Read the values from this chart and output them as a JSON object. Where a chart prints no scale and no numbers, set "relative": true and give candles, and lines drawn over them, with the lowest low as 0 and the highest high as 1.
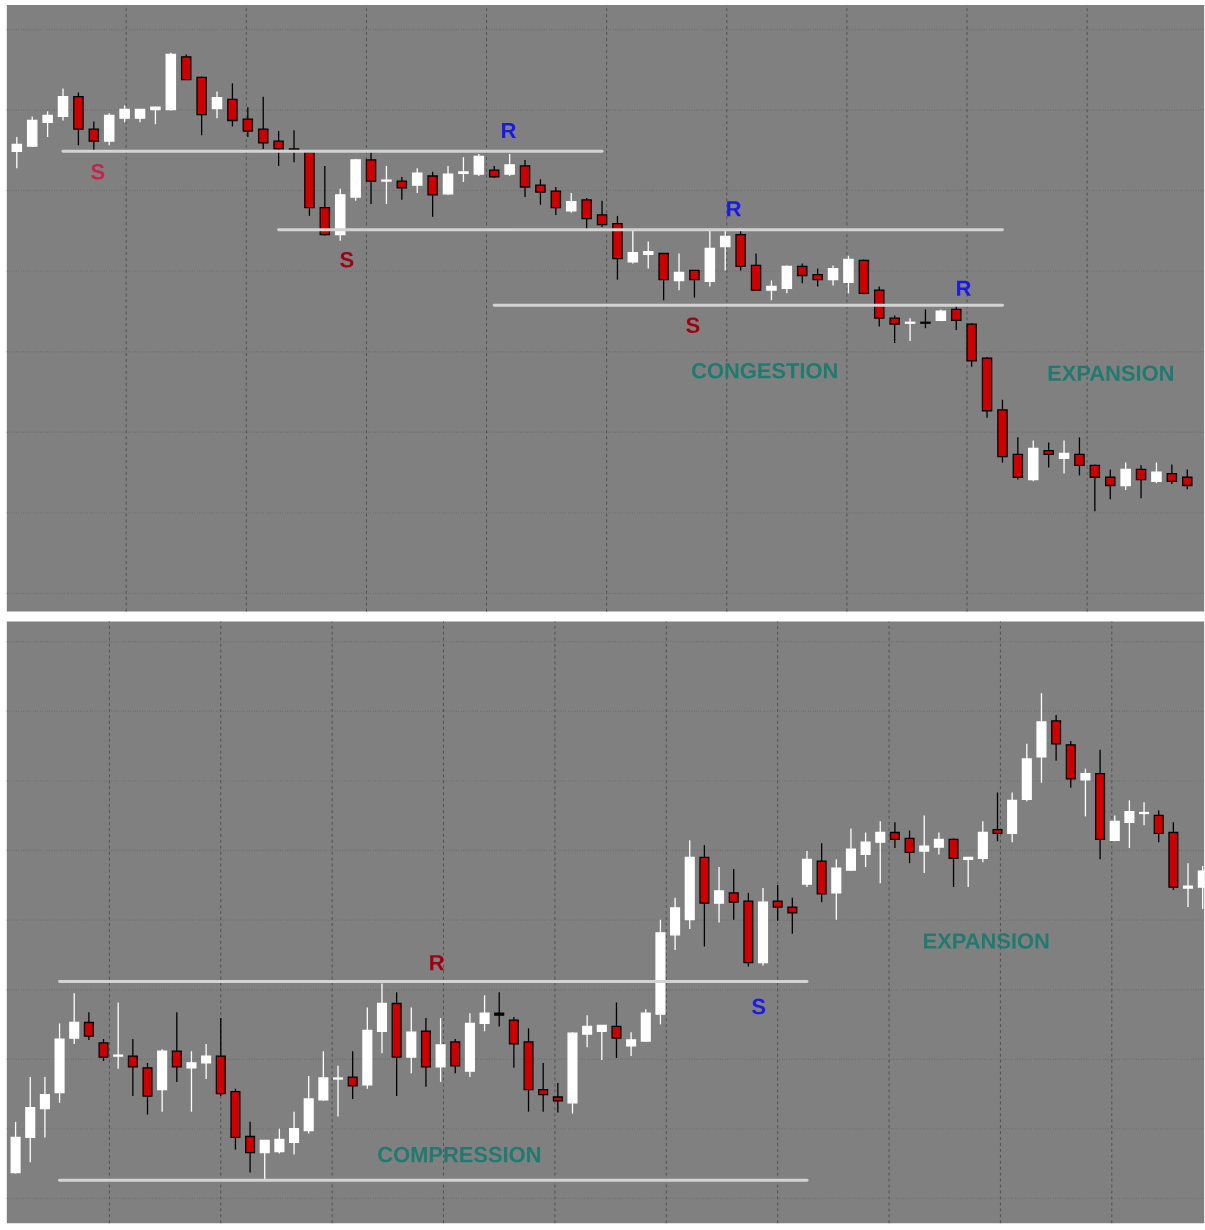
{
  "chart_data": [
    {
      "type": "candlestick",
      "relative": true,
      "grid": true,
      "categories": [
        null,
        null,
        null,
        null,
        null,
        null,
        null,
        null,
        null,
        null,
        null,
        null,
        null,
        null,
        null,
        null,
        null,
        null,
        null,
        null,
        null,
        null,
        null,
        null,
        null,
        null,
        null,
        null,
        null,
        null,
        null,
        null,
        null,
        null,
        null,
        null,
        null,
        null,
        null,
        null,
        null,
        null,
        null,
        null,
        null,
        null,
        null,
        null,
        null,
        null,
        null,
        null,
        null,
        null,
        null,
        null,
        null,
        null,
        null,
        null,
        null,
        null,
        null,
        null,
        null,
        null,
        null,
        null,
        null,
        null,
        null,
        null,
        null,
        null,
        null,
        null,
        null
      ],
      "ohlc": [
        [
          0.785,
          0.816,
          0.748,
          0.8
        ],
        [
          0.796,
          0.861,
          0.794,
          0.852
        ],
        [
          0.848,
          0.872,
          0.816,
          0.863
        ],
        [
          0.861,
          0.922,
          0.852,
          0.904
        ],
        [
          0.904,
          0.913,
          0.798,
          0.833
        ],
        [
          0.833,
          0.85,
          0.787,
          0.807
        ],
        [
          0.807,
          0.868,
          0.798,
          0.863
        ],
        [
          0.857,
          0.885,
          0.848,
          0.876
        ],
        [
          0.857,
          0.876,
          0.848,
          0.876
        ],
        [
          0.876,
          0.881,
          0.844,
          0.881
        ],
        [
          0.876,
          1.0,
          0.874,
          0.996
        ],
        [
          0.991,
          0.996,
          0.941,
          0.941
        ],
        [
          0.946,
          0.948,
          0.82,
          0.865
        ],
        [
          0.878,
          0.915,
          0.857,
          0.902
        ],
        [
          0.898,
          0.933,
          0.839,
          0.852
        ],
        [
          0.855,
          0.881,
          0.816,
          0.829
        ],
        [
          0.833,
          0.904,
          0.79,
          0.803
        ],
        [
          0.807,
          0.829,
          0.753,
          0.79
        ],
        [
          0.79,
          0.831,
          0.761,
          0.787
        ],
        [
          0.783,
          0.787,
          0.644,
          0.662
        ],
        [
          0.662,
          0.753,
          0.601,
          0.603
        ],
        [
          0.603,
          0.703,
          0.59,
          0.69
        ],
        [
          0.685,
          0.768,
          0.677,
          0.766
        ],
        [
          0.766,
          0.783,
          0.67,
          0.72
        ],
        [
          0.72,
          0.753,
          0.67,
          0.722
        ],
        [
          0.72,
          0.729,
          0.679,
          0.705
        ],
        [
          0.711,
          0.748,
          0.694,
          0.737
        ],
        [
          0.731,
          0.74,
          0.642,
          0.69
        ],
        [
          0.692,
          0.753,
          0.69,
          0.735
        ],
        [
          0.737,
          0.772,
          0.718,
          0.74
        ],
        [
          0.735,
          0.779,
          0.731,
          0.774
        ],
        [
          0.744,
          0.753,
          0.727,
          0.729
        ],
        [
          0.735,
          0.779,
          0.731,
          0.755
        ],
        [
          0.753,
          0.766,
          0.685,
          0.707
        ],
        [
          0.711,
          0.724,
          0.668,
          0.696
        ],
        [
          0.698,
          0.707,
          0.646,
          0.662
        ],
        [
          0.655,
          0.694,
          0.651,
          0.675
        ],
        [
          0.679,
          0.683,
          0.612,
          0.638
        ],
        [
          0.646,
          0.677,
          0.62,
          0.625
        ],
        [
          0.627,
          0.644,
          0.505,
          0.551
        ],
        [
          0.544,
          0.612,
          0.54,
          0.564
        ],
        [
          0.56,
          0.588,
          0.529,
          0.566
        ],
        [
          0.562,
          0.562,
          0.46,
          0.505
        ],
        [
          0.503,
          0.562,
          0.482,
          0.521
        ],
        [
          0.525,
          0.525,
          0.466,
          0.505
        ],
        [
          0.501,
          0.612,
          0.49,
          0.573
        ],
        [
          0.577,
          0.612,
          0.525,
          0.599
        ],
        [
          0.603,
          0.612,
          0.525,
          0.534
        ],
        [
          0.536,
          0.562,
          0.482,
          0.482
        ],
        [
          0.482,
          0.503,
          0.46,
          0.49
        ],
        [
          0.486,
          0.536,
          0.475,
          0.534
        ],
        [
          0.534,
          0.54,
          0.497,
          0.514
        ],
        [
          0.516,
          0.529,
          0.49,
          0.505
        ],
        [
          0.505,
          0.536,
          0.492,
          0.529
        ],
        [
          0.499,
          0.557,
          0.475,
          0.549
        ],
        [
          0.547,
          0.549,
          0.473,
          0.475
        ],
        [
          0.482,
          0.49,
          0.403,
          0.421
        ],
        [
          0.421,
          0.427,
          0.367,
          0.408
        ],
        [
          0.41,
          0.421,
          0.371,
          0.412
        ],
        [
          0.412,
          0.44,
          0.399,
          0.41
        ],
        [
          0.416,
          0.44,
          0.414,
          0.436
        ],
        [
          0.44,
          0.447,
          0.395,
          0.416
        ],
        [
          0.408,
          0.41,
          0.315,
          0.328
        ],
        [
          0.334,
          0.336,
          0.204,
          0.219
        ],
        [
          0.221,
          0.243,
          0.106,
          0.119
        ],
        [
          0.124,
          0.161,
          0.069,
          0.074
        ],
        [
          0.069,
          0.154,
          0.065,
          0.137
        ],
        [
          0.132,
          0.15,
          0.095,
          0.124
        ],
        [
          0.115,
          0.154,
          0.082,
          0.126
        ],
        [
          0.124,
          0.161,
          0.078,
          0.1
        ],
        [
          0.1,
          0.102,
          0.0,
          0.074
        ],
        [
          0.074,
          0.091,
          0.026,
          0.056
        ],
        [
          0.056,
          0.106,
          0.046,
          0.091
        ],
        [
          0.091,
          0.1,
          0.028,
          0.069
        ],
        [
          0.065,
          0.106,
          0.061,
          0.085
        ],
        [
          0.082,
          0.102,
          0.059,
          0.065
        ],
        [
          0.074,
          0.091,
          0.048,
          0.056
        ]
      ],
      "colors": [
        "#ffffff",
        "#ffffff",
        "#ffffff",
        "#ffffff",
        "#cc0000",
        "#cc0000",
        "#ffffff",
        "#ffffff",
        "#ffffff",
        "#ffffff",
        "#ffffff",
        "#cc0000",
        "#cc0000",
        "#ffffff",
        "#cc0000",
        "#cc0000",
        "#cc0000",
        "#cc0000",
        "#cc0000",
        "#cc0000",
        "#cc0000",
        "#ffffff",
        "#ffffff",
        "#cc0000",
        "#ffffff",
        "#cc0000",
        "#ffffff",
        "#cc0000",
        "#ffffff",
        "#ffffff",
        "#ffffff",
        "#cc0000",
        "#ffffff",
        "#cc0000",
        "#cc0000",
        "#cc0000",
        "#ffffff",
        "#cc0000",
        "#cc0000",
        "#cc0000",
        "#ffffff",
        "#ffffff",
        "#cc0000",
        "#ffffff",
        "#cc0000",
        "#ffffff",
        "#ffffff",
        "#cc0000",
        "#cc0000",
        "#ffffff",
        "#ffffff",
        "#cc0000",
        "#cc0000",
        "#ffffff",
        "#ffffff",
        "#cc0000",
        "#cc0000",
        "#cc0000",
        "#ffffff",
        "#000000",
        "#ffffff",
        "#cc0000",
        "#cc0000",
        "#cc0000",
        "#cc0000",
        "#cc0000",
        "#ffffff",
        "#cc0000",
        "#ffffff",
        "#cc0000",
        "#cc0000",
        "#cc0000",
        "#ffffff",
        "#cc0000",
        "#ffffff",
        "#cc0000",
        "#cc0000"
      ],
      "series": [
        {
          "type": "line",
          "color": "#d3d3d3",
          "values": [
            null,
            null,
            null,
            0.785,
            0.785,
            0.785,
            0.785,
            0.785,
            0.785,
            0.785,
            0.785,
            0.785,
            0.785,
            0.785,
            0.785,
            0.785,
            0.785,
            0.785,
            0.785,
            0.785,
            0.785,
            0.785,
            0.785,
            0.785,
            0.785,
            0.785,
            0.785,
            0.785,
            0.785,
            0.785,
            0.785,
            0.785,
            0.785,
            0.785,
            0.785,
            0.785,
            0.785,
            0.785,
            0.785,
            null,
            null,
            null,
            null,
            null,
            null,
            null,
            null,
            null,
            null,
            null,
            null,
            null,
            null,
            null,
            null,
            null,
            null,
            null,
            null,
            null,
            null,
            null,
            null,
            null,
            null,
            null,
            null,
            null,
            null,
            null,
            null,
            null,
            null,
            null,
            null,
            null,
            null
          ]
        },
        {
          "type": "line",
          "color": "#d3d3d3",
          "values": [
            null,
            null,
            null,
            null,
            null,
            null,
            null,
            null,
            null,
            null,
            null,
            null,
            null,
            null,
            null,
            null,
            null,
            0.614,
            0.614,
            0.614,
            0.614,
            0.614,
            0.614,
            0.614,
            0.614,
            0.614,
            0.614,
            0.614,
            0.614,
            0.614,
            0.614,
            0.614,
            0.614,
            0.614,
            0.614,
            0.614,
            0.614,
            0.614,
            0.614,
            0.614,
            0.614,
            0.614,
            0.614,
            0.614,
            0.614,
            0.614,
            0.614,
            0.614,
            0.614,
            0.614,
            0.614,
            0.614,
            0.614,
            0.614,
            0.614,
            0.614,
            0.614,
            0.614,
            0.614,
            0.614,
            0.614,
            0.614,
            0.614,
            0.614,
            0.614,
            null,
            null,
            null,
            null,
            null,
            null,
            null,
            null,
            null,
            null,
            null,
            null
          ]
        },
        {
          "type": "line",
          "color": "#d3d3d3",
          "values": [
            null,
            null,
            null,
            null,
            null,
            null,
            null,
            null,
            null,
            null,
            null,
            null,
            null,
            null,
            null,
            null,
            null,
            null,
            null,
            null,
            null,
            null,
            null,
            null,
            null,
            null,
            null,
            null,
            null,
            null,
            null,
            0.449,
            0.449,
            0.449,
            0.449,
            0.449,
            0.449,
            0.449,
            0.449,
            0.449,
            0.449,
            0.449,
            0.449,
            0.449,
            0.449,
            0.449,
            0.449,
            0.449,
            0.449,
            0.449,
            0.449,
            0.449,
            0.449,
            0.449,
            0.449,
            0.449,
            0.449,
            0.449,
            0.449,
            0.449,
            0.449,
            0.449,
            0.449,
            0.449,
            0.449,
            null,
            null,
            null,
            null,
            null,
            null,
            null,
            null,
            null,
            null,
            null,
            null
          ]
        }
      ],
      "annotations": [
        "S",
        "S",
        "S",
        "R",
        "R",
        "R",
        "CONGESTION",
        "EXPANSION"
      ]
    },
    {
      "type": "candlestick",
      "relative": true,
      "grid": true,
      "categories": [
        null,
        null,
        null,
        null,
        null,
        null,
        null,
        null,
        null,
        null,
        null,
        null,
        null,
        null,
        null,
        null,
        null,
        null,
        null,
        null,
        null,
        null,
        null,
        null,
        null,
        null,
        null,
        null,
        null,
        null,
        null,
        null,
        null,
        null,
        null,
        null,
        null,
        null,
        null,
        null,
        null,
        null,
        null,
        null,
        null,
        null,
        null,
        null,
        null,
        null,
        null,
        null,
        null,
        null,
        null,
        null,
        null,
        null,
        null,
        null,
        null,
        null,
        null,
        null,
        null,
        null,
        null,
        null,
        null,
        null,
        null,
        null,
        null,
        null,
        null,
        null,
        null,
        null,
        null,
        null,
        null,
        null
      ],
      "ohlc": [
        [
          0.016,
          0.12,
          0.014,
          0.088
        ],
        [
          0.088,
          0.212,
          0.037,
          0.149
        ],
        [
          0.147,
          0.212,
          0.088,
          0.176
        ],
        [
          0.18,
          0.322,
          0.159,
          0.29
        ],
        [
          0.292,
          0.384,
          0.28,
          0.324
        ],
        [
          0.324,
          0.345,
          0.288,
          0.296
        ],
        [
          0.282,
          0.29,
          0.245,
          0.253
        ],
        [
          0.255,
          0.365,
          0.229,
          0.257
        ],
        [
          0.255,
          0.29,
          0.173,
          0.233
        ],
        [
          0.231,
          0.241,
          0.135,
          0.173
        ],
        [
          0.186,
          0.269,
          0.141,
          0.265
        ],
        [
          0.265,
          0.345,
          0.202,
          0.233
        ],
        [
          0.231,
          0.265,
          0.141,
          0.241
        ],
        [
          0.241,
          0.28,
          0.208,
          0.255
        ],
        [
          0.255,
          0.333,
          0.173,
          0.178
        ],
        [
          0.182,
          0.188,
          0.063,
          0.088
        ],
        [
          0.09,
          0.12,
          0.016,
          0.057
        ],
        [
          0.057,
          0.082,
          0.0,
          0.082
        ],
        [
          0.059,
          0.106,
          0.055,
          0.084
        ],
        [
          0.078,
          0.141,
          0.053,
          0.106
        ],
        [
          0.102,
          0.214,
          0.096,
          0.167
        ],
        [
          0.165,
          0.265,
          0.163,
          0.21
        ],
        [
          0.208,
          0.235,
          0.131,
          0.21
        ],
        [
          0.212,
          0.265,
          0.167,
          0.194
        ],
        [
          0.196,
          0.355,
          0.188,
          0.308
        ],
        [
          0.306,
          0.404,
          0.261,
          0.363
        ],
        [
          0.363,
          0.386,
          0.173,
          0.253
        ],
        [
          0.253,
          0.355,
          0.22,
          0.304
        ],
        [
          0.306,
          0.333,
          0.192,
          0.233
        ],
        [
          0.233,
          0.333,
          0.202,
          0.278
        ],
        [
          0.284,
          0.29,
          0.22,
          0.235
        ],
        [
          0.224,
          0.343,
          0.212,
          0.322
        ],
        [
          0.322,
          0.38,
          0.306,
          0.343
        ],
        [
          0.343,
          0.386,
          0.316,
          0.339
        ],
        [
          0.329,
          0.335,
          0.231,
          0.28
        ],
        [
          0.284,
          0.312,
          0.141,
          0.186
        ],
        [
          0.186,
          0.241,
          0.141,
          0.176
        ],
        [
          0.171,
          0.2,
          0.139,
          0.163
        ],
        [
          0.159,
          0.304,
          0.137,
          0.302
        ],
        [
          0.3,
          0.339,
          0.273,
          0.316
        ],
        [
          0.306,
          0.318,
          0.247,
          0.318
        ],
        [
          0.316,
          0.365,
          0.251,
          0.292
        ],
        [
          0.276,
          0.304,
          0.255,
          0.288
        ],
        [
          0.286,
          0.351,
          0.284,
          0.343
        ],
        [
          0.341,
          0.535,
          0.32,
          0.508
        ],
        [
          0.504,
          0.58,
          0.473,
          0.559
        ],
        [
          0.535,
          0.698,
          0.516,
          0.663
        ],
        [
          0.663,
          0.688,
          0.48,
          0.569
        ],
        [
          0.569,
          0.643,
          0.529,
          0.594
        ],
        [
          0.59,
          0.639,
          0.535,
          0.571
        ],
        [
          0.573,
          0.59,
          0.439,
          0.447
        ],
        [
          0.447,
          0.6,
          0.441,
          0.571
        ],
        [
          0.573,
          0.606,
          0.533,
          0.561
        ],
        [
          0.561,
          0.58,
          0.506,
          0.549
        ],
        [
          0.608,
          0.676,
          0.602,
          0.659
        ],
        [
          0.655,
          0.692,
          0.571,
          0.588
        ],
        [
          0.59,
          0.659,
          0.535,
          0.641
        ],
        [
          0.637,
          0.722,
          0.635,
          0.68
        ],
        [
          0.669,
          0.714,
          0.643,
          0.694
        ],
        [
          0.694,
          0.737,
          0.61,
          0.714
        ],
        [
          0.714,
          0.735,
          0.682,
          0.7
        ],
        [
          0.702,
          0.718,
          0.651,
          0.673
        ],
        [
          0.676,
          0.749,
          0.631,
          0.686
        ],
        [
          0.684,
          0.714,
          0.669,
          0.7
        ],
        [
          0.7,
          0.702,
          0.602,
          0.661
        ],
        [
          0.659,
          0.663,
          0.602,
          0.663
        ],
        [
          0.661,
          0.737,
          0.653,
          0.714
        ],
        [
          0.72,
          0.796,
          0.696,
          0.712
        ],
        [
          0.712,
          0.796,
          0.694,
          0.78
        ],
        [
          0.782,
          0.896,
          0.778,
          0.865
        ],
        [
          0.869,
          1.0,
          0.816,
          0.941
        ],
        [
          0.943,
          0.955,
          0.861,
          0.896
        ],
        [
          0.894,
          0.902,
          0.806,
          0.824
        ],
        [
          0.822,
          0.845,
          0.747,
          0.835
        ],
        [
          0.835,
          0.884,
          0.659,
          0.7
        ],
        [
          0.698,
          0.749,
          0.696,
          0.737
        ],
        [
          0.735,
          0.78,
          0.682,
          0.757
        ],
        [
          0.753,
          0.776,
          0.729,
          0.755
        ],
        [
          0.749,
          0.759,
          0.694,
          0.712
        ],
        [
          0.714,
          0.735,
          0.596,
          0.602
        ],
        [
          0.6,
          0.651,
          0.561,
          0.604
        ],
        [
          0.602,
          0.645,
          0.557,
          0.635
        ]
      ],
      "colors": [
        "#ffffff",
        "#ffffff",
        "#ffffff",
        "#ffffff",
        "#ffffff",
        "#cc0000",
        "#cc0000",
        "#ffffff",
        "#cc0000",
        "#cc0000",
        "#ffffff",
        "#cc0000",
        "#ffffff",
        "#ffffff",
        "#cc0000",
        "#cc0000",
        "#cc0000",
        "#ffffff",
        "#ffffff",
        "#ffffff",
        "#ffffff",
        "#ffffff",
        "#ffffff",
        "#cc0000",
        "#ffffff",
        "#ffffff",
        "#cc0000",
        "#ffffff",
        "#cc0000",
        "#ffffff",
        "#cc0000",
        "#ffffff",
        "#ffffff",
        "#000000",
        "#cc0000",
        "#cc0000",
        "#cc0000",
        "#cc0000",
        "#ffffff",
        "#ffffff",
        "#ffffff",
        "#cc0000",
        "#ffffff",
        "#ffffff",
        "#ffffff",
        "#ffffff",
        "#ffffff",
        "#cc0000",
        "#ffffff",
        "#cc0000",
        "#cc0000",
        "#ffffff",
        "#cc0000",
        "#cc0000",
        "#ffffff",
        "#cc0000",
        "#ffffff",
        "#ffffff",
        "#ffffff",
        "#ffffff",
        "#cc0000",
        "#cc0000",
        "#ffffff",
        "#ffffff",
        "#cc0000",
        "#ffffff",
        "#ffffff",
        "#cc0000",
        "#ffffff",
        "#ffffff",
        "#ffffff",
        "#cc0000",
        "#cc0000",
        "#ffffff",
        "#cc0000",
        "#ffffff",
        "#ffffff",
        "#ffffff",
        "#cc0000",
        "#cc0000",
        "#ffffff",
        "#ffffff"
      ],
      "series": [
        {
          "type": "line",
          "color": "#d3d3d3",
          "values": [
            null,
            null,
            null,
            0.408,
            0.408,
            0.408,
            0.408,
            0.408,
            0.408,
            0.408,
            0.408,
            0.408,
            0.408,
            0.408,
            0.408,
            0.408,
            0.408,
            0.408,
            0.408,
            0.408,
            0.408,
            0.408,
            0.408,
            0.408,
            0.408,
            0.408,
            0.408,
            0.408,
            0.408,
            0.408,
            0.408,
            0.408,
            0.408,
            0.408,
            0.408,
            0.408,
            0.408,
            0.408,
            0.408,
            0.408,
            0.408,
            0.408,
            0.408,
            0.408,
            0.408,
            0.408,
            0.408,
            0.408,
            0.408,
            0.408,
            0.408,
            0.408,
            0.408,
            0.408,
            0.408,
            null,
            null,
            null,
            null,
            null,
            null,
            null,
            null,
            null,
            null,
            null,
            null,
            null,
            null,
            null,
            null,
            null,
            null,
            null,
            null,
            null,
            null,
            null,
            null,
            null,
            null,
            null
          ]
        },
        {
          "type": "line",
          "color": "#d3d3d3",
          "values": [
            null,
            null,
            null,
            0.0,
            0.0,
            0.0,
            0.0,
            0.0,
            0.0,
            0.0,
            0.0,
            0.0,
            0.0,
            0.0,
            0.0,
            0.0,
            0.0,
            0.0,
            0.0,
            0.0,
            0.0,
            0.0,
            0.0,
            0.0,
            0.0,
            0.0,
            0.0,
            0.0,
            0.0,
            0.0,
            0.0,
            0.0,
            0.0,
            0.0,
            0.0,
            0.0,
            0.0,
            0.0,
            0.0,
            0.0,
            0.0,
            0.0,
            0.0,
            0.0,
            0.0,
            0.0,
            0.0,
            0.0,
            0.0,
            0.0,
            0.0,
            0.0,
            0.0,
            0.0,
            0.0,
            null,
            null,
            null,
            null,
            null,
            null,
            null,
            null,
            null,
            null,
            null,
            null,
            null,
            null,
            null,
            null,
            null,
            null,
            null,
            null,
            null,
            null,
            null,
            null,
            null,
            null,
            null
          ]
        }
      ],
      "annotations": [
        "R",
        "S",
        "COMPRESSION",
        "EXPANSION"
      ]
    }
  ]
}
